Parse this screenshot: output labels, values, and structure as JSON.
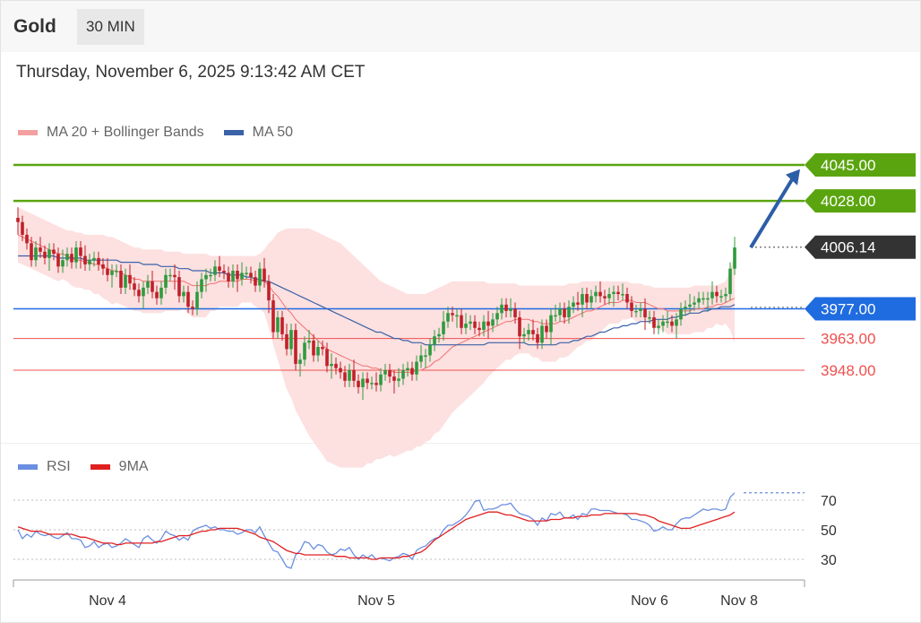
{
  "header": {
    "instrument": "Gold",
    "timeframe": "30 MIN"
  },
  "timestamp": "Thursday, November 6, 2025 9:13:42 AM CET",
  "legend_main": [
    {
      "label": "MA 20 + Bollinger Bands",
      "color": "#f4a0a0"
    },
    {
      "label": "MA 50",
      "color": "#3a62a8"
    }
  ],
  "legend_rsi": [
    {
      "label": "RSI",
      "color": "#6b8fe0"
    },
    {
      "label": "9MA",
      "color": "#e02020"
    }
  ],
  "colors": {
    "up": "#2e9b3e",
    "down": "#c0202a",
    "green_level": "#5aa50f",
    "blue_level": "#1f6be0",
    "red_level": "#f05050",
    "price": "#333333",
    "bollinger": "#fde0e0",
    "ma20": "#f27070",
    "ma50": "#3a62a8",
    "arrow": "#2c5ea8",
    "rsi": "#6b8fe0",
    "rsi_ma": "#e02020"
  },
  "chart_data": [
    {
      "type": "candlestick",
      "instrument": "Gold",
      "ylim": [
        3925,
        4060
      ],
      "x_ticks": [
        "Nov 4",
        "Nov 5",
        "Nov 6",
        "Nov 8"
      ],
      "current_price": "4006.14",
      "levels": [
        {
          "value": 4045.0,
          "label": "4045.00",
          "kind": "resistance",
          "style": "green-tag"
        },
        {
          "value": 4028.0,
          "label": "4028.00",
          "kind": "resistance",
          "style": "green-tag"
        },
        {
          "value": 3977.0,
          "label": "3977.00",
          "kind": "support",
          "style": "blue-tag"
        },
        {
          "value": 3963.0,
          "label": "3963.00",
          "kind": "support",
          "style": "red-text"
        },
        {
          "value": 3948.0,
          "label": "3948.00",
          "kind": "support",
          "style": "red-text"
        }
      ],
      "arrow": {
        "from_price": 4006,
        "to_price": 4043
      },
      "close": [
        4018,
        4012,
        4008,
        4000,
        4006,
        4004,
        4001,
        4005,
        4003,
        3997,
        4000,
        4003,
        3999,
        4006,
        4002,
        3998,
        4000,
        4001,
        3998,
        3996,
        3993,
        3995,
        3995,
        3987,
        3993,
        3989,
        3986,
        3983,
        3987,
        3990,
        3985,
        3982,
        3987,
        3993,
        3993,
        3992,
        3983,
        3985,
        3978,
        3977,
        3985,
        3991,
        3993,
        3993,
        3997,
        3995,
        3994,
        3990,
        3995,
        3991,
        3994,
        3994,
        3992,
        3988,
        3996,
        3990,
        3981,
        3966,
        3973,
        3965,
        3958,
        3967,
        3951,
        3953,
        3961,
        3962,
        3955,
        3959,
        3958,
        3950,
        3951,
        3949,
        3947,
        3943,
        3948,
        3943,
        3940,
        3944,
        3942,
        3942,
        3941,
        3946,
        3948,
        3945,
        3943,
        3944,
        3948,
        3949,
        3946,
        3952,
        3955,
        3955,
        3960,
        3964,
        3965,
        3971,
        3975,
        3974,
        3974,
        3968,
        3970,
        3971,
        3968,
        3967,
        3971,
        3969,
        3972,
        3975,
        3979,
        3976,
        3977,
        3973,
        3964,
        3965,
        3967,
        3965,
        3961,
        3969,
        3966,
        3974,
        3974,
        3977,
        3973,
        3978,
        3980,
        3979,
        3984,
        3980,
        3983,
        3985,
        3983,
        3982,
        3984,
        3985,
        3984,
        3984,
        3980,
        3976,
        3976,
        3977,
        3973,
        3973,
        3968,
        3969,
        3971,
        3971,
        3969,
        3972,
        3977,
        3978,
        3979,
        3980,
        3982,
        3982,
        3982,
        3985,
        3983,
        3983,
        3984,
        3996,
        4006
      ],
      "ma20": [
        4012,
        4011,
        4010,
        4009,
        4008,
        4007,
        4006,
        4005,
        4004,
        4003,
        4003,
        4002,
        4001,
        4000,
        4000,
        3999,
        3999,
        3998,
        3998,
        3997,
        3996,
        3995,
        3995,
        3994,
        3993,
        3992,
        3991,
        3991,
        3990,
        3990,
        3990,
        3990,
        3990,
        3990,
        3990,
        3990,
        3990,
        3990,
        3989,
        3988,
        3988,
        3988,
        3988,
        3989,
        3989,
        3990,
        3990,
        3990,
        3990,
        3990,
        3991,
        3991,
        3991,
        3990,
        3990,
        3990,
        3988,
        3985,
        3983,
        3980,
        3977,
        3975,
        3972,
        3970,
        3968,
        3966,
        3964,
        3962,
        3960,
        3958,
        3957,
        3956,
        3955,
        3954,
        3953,
        3952,
        3951,
        3950,
        3950,
        3949,
        3949,
        3948,
        3948,
        3948,
        3947,
        3947,
        3947,
        3947,
        3947,
        3948,
        3948,
        3949,
        3950,
        3952,
        3953,
        3955,
        3957,
        3959,
        3960,
        3961,
        3962,
        3963,
        3964,
        3965,
        3966,
        3967,
        3968,
        3969,
        3970,
        3971,
        3971,
        3972,
        3972,
        3972,
        3972,
        3971,
        3971,
        3970,
        3970,
        3970,
        3970,
        3971,
        3971,
        3972,
        3973,
        3974,
        3975,
        3976,
        3976,
        3977,
        3978,
        3979,
        3980,
        3980,
        3980,
        3981,
        3981,
        3981,
        3980,
        3980,
        3980,
        3979,
        3978,
        3977,
        3977,
        3976,
        3976,
        3976,
        3976,
        3976,
        3976,
        3977,
        3977,
        3977,
        3978,
        3978,
        3979,
        3979,
        3980,
        3981,
        3982
      ],
      "ma50": [
        4002,
        4002,
        4002,
        4002,
        4002,
        4002,
        4002,
        4002,
        4002,
        4001,
        4001,
        4001,
        4001,
        4001,
        4001,
        4000,
        4000,
        4000,
        4000,
        4000,
        4000,
        4000,
        4000,
        3999,
        3999,
        3999,
        3999,
        3999,
        3998,
        3998,
        3998,
        3998,
        3997,
        3997,
        3997,
        3997,
        3996,
        3996,
        3996,
        3995,
        3995,
        3995,
        3995,
        3994,
        3994,
        3994,
        3994,
        3993,
        3993,
        3993,
        3993,
        3992,
        3992,
        3991,
        3991,
        3990,
        3990,
        3989,
        3988,
        3987,
        3986,
        3985,
        3984,
        3983,
        3982,
        3981,
        3980,
        3979,
        3978,
        3977,
        3976,
        3975,
        3974,
        3973,
        3972,
        3971,
        3970,
        3969,
        3968,
        3967,
        3966,
        3966,
        3965,
        3964,
        3963,
        3963,
        3962,
        3962,
        3961,
        3961,
        3961,
        3960,
        3960,
        3960,
        3960,
        3960,
        3960,
        3960,
        3960,
        3960,
        3960,
        3960,
        3960,
        3960,
        3960,
        3961,
        3961,
        3961,
        3961,
        3961,
        3961,
        3961,
        3961,
        3961,
        3960,
        3960,
        3960,
        3960,
        3960,
        3960,
        3960,
        3961,
        3961,
        3961,
        3962,
        3962,
        3963,
        3964,
        3964,
        3965,
        3966,
        3966,
        3967,
        3968,
        3968,
        3969,
        3969,
        3970,
        3970,
        3971,
        3971,
        3971,
        3972,
        3972,
        3972,
        3972,
        3973,
        3973,
        3974,
        3974,
        3975,
        3975,
        3975,
        3976,
        3976,
        3977,
        3977,
        3978,
        3978,
        3978,
        3979
      ],
      "bb_upper": [
        4025,
        4024,
        4023,
        4022,
        4021,
        4020,
        4019,
        4018,
        4017,
        4016,
        4015,
        4014,
        4014,
        4013,
        4013,
        4012,
        4012,
        4012,
        4012,
        4012,
        4011,
        4011,
        4010,
        4009,
        4008,
        4007,
        4006,
        4006,
        4005,
        4005,
        4005,
        4005,
        4005,
        4004,
        4004,
        4004,
        4004,
        4003,
        4003,
        4003,
        4003,
        4003,
        4003,
        4002,
        4002,
        4002,
        4002,
        4002,
        4002,
        4002,
        4002,
        4002,
        4002,
        4002,
        4003,
        4005,
        4008,
        4010,
        4013,
        4014,
        4015,
        4015,
        4015,
        4015,
        4015,
        4015,
        4014,
        4013,
        4012,
        4011,
        4010,
        4009,
        4008,
        4006,
        4004,
        4002,
        4000,
        3998,
        3996,
        3994,
        3992,
        3990,
        3989,
        3988,
        3987,
        3986,
        3985,
        3984,
        3984,
        3984,
        3984,
        3984,
        3985,
        3986,
        3987,
        3988,
        3989,
        3990,
        3990,
        3990,
        3990,
        3990,
        3990,
        3990,
        3990,
        3989,
        3989,
        3989,
        3989,
        3989,
        3989,
        3989,
        3988,
        3988,
        3988,
        3988,
        3988,
        3988,
        3988,
        3988,
        3988,
        3988,
        3988,
        3989,
        3989,
        3989,
        3990,
        3990,
        3990,
        3990,
        3990,
        3990,
        3990,
        3990,
        3990,
        3990,
        3990,
        3989,
        3989,
        3989,
        3988,
        3988,
        3987,
        3987,
        3987,
        3987,
        3987,
        3987,
        3987,
        3987,
        3987,
        3988,
        3988,
        3988,
        3988,
        3988,
        3988,
        3989,
        3990,
        3995,
        4003
      ],
      "bb_lower": [
        3999,
        3998,
        3997,
        3996,
        3995,
        3994,
        3993,
        3992,
        3991,
        3990,
        3991,
        3990,
        3988,
        3987,
        3987,
        3986,
        3986,
        3984,
        3984,
        3982,
        3981,
        3979,
        3980,
        3979,
        3978,
        3977,
        3976,
        3976,
        3975,
        3975,
        3975,
        3975,
        3975,
        3976,
        3976,
        3976,
        3976,
        3977,
        3975,
        3973,
        3973,
        3973,
        3973,
        3976,
        3976,
        3978,
        3978,
        3978,
        3978,
        3978,
        3980,
        3980,
        3980,
        3978,
        3977,
        3975,
        3968,
        3960,
        3953,
        3946,
        3939,
        3935,
        3929,
        3925,
        3921,
        3917,
        3914,
        3911,
        3908,
        3905,
        3904,
        3903,
        3902,
        3902,
        3902,
        3902,
        3902,
        3902,
        3904,
        3904,
        3906,
        3906,
        3907,
        3908,
        3907,
        3908,
        3909,
        3910,
        3910,
        3912,
        3912,
        3914,
        3915,
        3918,
        3919,
        3922,
        3925,
        3928,
        3930,
        3932,
        3934,
        3936,
        3938,
        3940,
        3942,
        3945,
        3947,
        3949,
        3951,
        3953,
        3953,
        3955,
        3956,
        3956,
        3956,
        3954,
        3954,
        3952,
        3952,
        3952,
        3952,
        3954,
        3954,
        3955,
        3957,
        3959,
        3960,
        3962,
        3962,
        3964,
        3966,
        3968,
        3970,
        3970,
        3970,
        3972,
        3972,
        3973,
        3971,
        3971,
        3972,
        3970,
        3969,
        3967,
        3967,
        3965,
        3965,
        3965,
        3965,
        3965,
        3965,
        3966,
        3966,
        3966,
        3968,
        3968,
        3970,
        3969,
        3970,
        3967,
        3961
      ]
    },
    {
      "type": "line",
      "name": "RSI",
      "ylim": [
        20,
        80
      ],
      "y_ticks": [
        70,
        50,
        30
      ],
      "series": [
        {
          "name": "RSI",
          "values": [
            50,
            44,
            47,
            45,
            49,
            47,
            46,
            47,
            45,
            44,
            46,
            48,
            44,
            44,
            43,
            38,
            39,
            42,
            38,
            40,
            41,
            38,
            39,
            41,
            44,
            42,
            40,
            38,
            44,
            46,
            43,
            41,
            44,
            49,
            47,
            46,
            43,
            45,
            43,
            49,
            51,
            52,
            53,
            51,
            52,
            50,
            50,
            49,
            49,
            47,
            48,
            50,
            50,
            48,
            52,
            46,
            41,
            36,
            35,
            30,
            25,
            24,
            33,
            36,
            42,
            41,
            37,
            40,
            39,
            35,
            33,
            34,
            37,
            36,
            38,
            33,
            30,
            33,
            31,
            33,
            30,
            31,
            30,
            29,
            31,
            32,
            34,
            33,
            30,
            36,
            38,
            39,
            42,
            44,
            45,
            50,
            53,
            53,
            55,
            57,
            60,
            64,
            69,
            70,
            63,
            64,
            64,
            65,
            67,
            67,
            68,
            64,
            61,
            60,
            59,
            57,
            53,
            58,
            56,
            61,
            60,
            62,
            58,
            58,
            60,
            57,
            61,
            60,
            64,
            64,
            63,
            63,
            63,
            62,
            61,
            61,
            60,
            57,
            57,
            56,
            55,
            53,
            49,
            50,
            52,
            50,
            50,
            54,
            57,
            58,
            58,
            60,
            62,
            64,
            63,
            64,
            64,
            63,
            64,
            72,
            75
          ]
        },
        {
          "name": "9MA",
          "values": [
            52,
            51,
            50,
            49,
            49,
            49,
            48,
            47,
            47,
            47,
            47,
            47,
            47,
            46,
            45,
            45,
            44,
            43,
            42,
            41,
            41,
            41,
            40,
            40,
            41,
            41,
            41,
            41,
            41,
            41,
            41,
            42,
            42,
            43,
            44,
            45,
            46,
            46,
            46,
            47,
            48,
            49,
            49,
            50,
            50,
            51,
            51,
            51,
            51,
            51,
            50,
            49,
            48,
            47,
            45,
            44,
            43,
            42,
            40,
            38,
            36,
            35,
            34,
            34,
            33,
            33,
            33,
            33,
            33,
            33,
            33,
            32,
            32,
            32,
            31,
            31,
            31,
            31,
            31,
            30,
            30,
            31,
            31,
            31,
            31,
            31,
            32,
            32,
            33,
            34,
            35,
            37,
            40,
            43,
            45,
            47,
            49,
            51,
            53,
            55,
            57,
            58,
            59,
            60,
            61,
            62,
            62,
            62,
            61,
            60,
            60,
            59,
            58,
            57,
            56,
            56,
            56,
            56,
            56,
            57,
            57,
            57,
            58,
            58,
            58,
            59,
            59,
            59,
            60,
            60,
            60,
            61,
            61,
            61,
            61,
            61,
            61,
            61,
            61,
            60,
            60,
            59,
            58,
            56,
            55,
            54,
            53,
            52,
            51,
            51,
            51,
            52,
            53,
            54,
            55,
            56,
            57,
            58,
            59,
            60,
            62
          ]
        }
      ]
    }
  ]
}
